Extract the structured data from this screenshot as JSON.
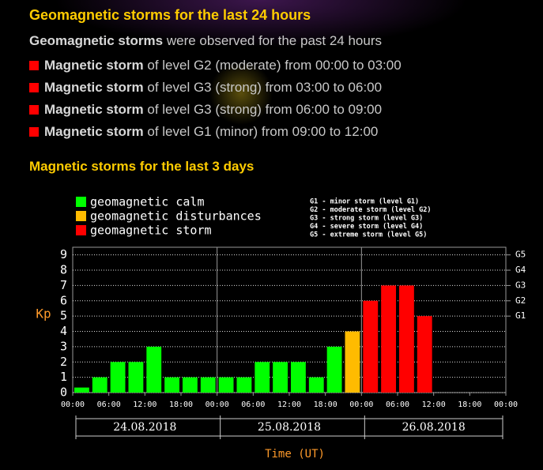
{
  "header": {
    "title": "Geomagnetic storms for the last 24 hours"
  },
  "summary": {
    "bold": "Geomagnetic storms",
    "text": "were observed for the past 24 hours"
  },
  "storms": [
    {
      "bold": "Magnetic storm",
      "text": "of level G2 (moderate) from 00:00 to 03:00"
    },
    {
      "bold": "Magnetic storm",
      "text": "of level G3 (strong) from 03:00 to 06:00"
    },
    {
      "bold": "Magnetic storm",
      "text": "of level G3 (strong) from 06:00 to 09:00"
    },
    {
      "bold": "Magnetic storm",
      "text": "of level G1 (minor) from 09:00 to 12:00"
    }
  ],
  "section": {
    "title": "Magnetic storms for the last 3 days"
  },
  "chart_data": {
    "type": "bar",
    "ylabel": "Kp",
    "xlabel": "Time (UT)",
    "ylim": [
      0,
      9.5
    ],
    "yticks": [
      0,
      1,
      2,
      3,
      4,
      5,
      6,
      7,
      8,
      9
    ],
    "y2lim": [
      0,
      9.5
    ],
    "y2ticks": [
      {
        "value": 5,
        "label": "G1"
      },
      {
        "value": 6,
        "label": "G2"
      },
      {
        "value": 7,
        "label": "G3"
      },
      {
        "value": 8,
        "label": "G4"
      },
      {
        "value": 9,
        "label": "G5"
      }
    ],
    "grid": true,
    "xtick_labels": [
      "00:00",
      "06:00",
      "12:00",
      "18:00",
      "00:00",
      "06:00",
      "12:00",
      "18:00",
      "00:00",
      "06:00",
      "12:00",
      "18:00",
      "00:00"
    ],
    "days": [
      "24.08.2018",
      "25.08.2018",
      "26.08.2018"
    ],
    "scale_notes": [
      "G1 - minor storm (level G1)",
      "G2 - moderate storm (level G2)",
      "G3 - strong storm (level G3)",
      "G4 - severe storm (level G4)",
      "G5 - extreme storm (level G5)"
    ],
    "series": [
      {
        "name": "geomagnetic calm",
        "color": "#00ff00",
        "values": [
          0.33,
          1,
          2,
          2,
          3,
          1,
          1,
          1,
          1,
          1,
          2,
          2,
          2,
          1,
          3,
          null,
          null,
          null,
          null,
          null,
          null,
          null,
          null,
          null
        ]
      },
      {
        "name": "geomagnetic disturbances",
        "color": "#ffbb00",
        "values": [
          null,
          null,
          null,
          null,
          null,
          null,
          null,
          null,
          null,
          null,
          null,
          null,
          null,
          null,
          null,
          4,
          null,
          null,
          null,
          null,
          null,
          null,
          null,
          null
        ]
      },
      {
        "name": "geomagnetic storm",
        "color": "#ff0000",
        "values": [
          null,
          null,
          null,
          null,
          null,
          null,
          null,
          null,
          null,
          null,
          null,
          null,
          null,
          null,
          null,
          null,
          6,
          7,
          7,
          5,
          null,
          null,
          null,
          null
        ]
      }
    ]
  }
}
